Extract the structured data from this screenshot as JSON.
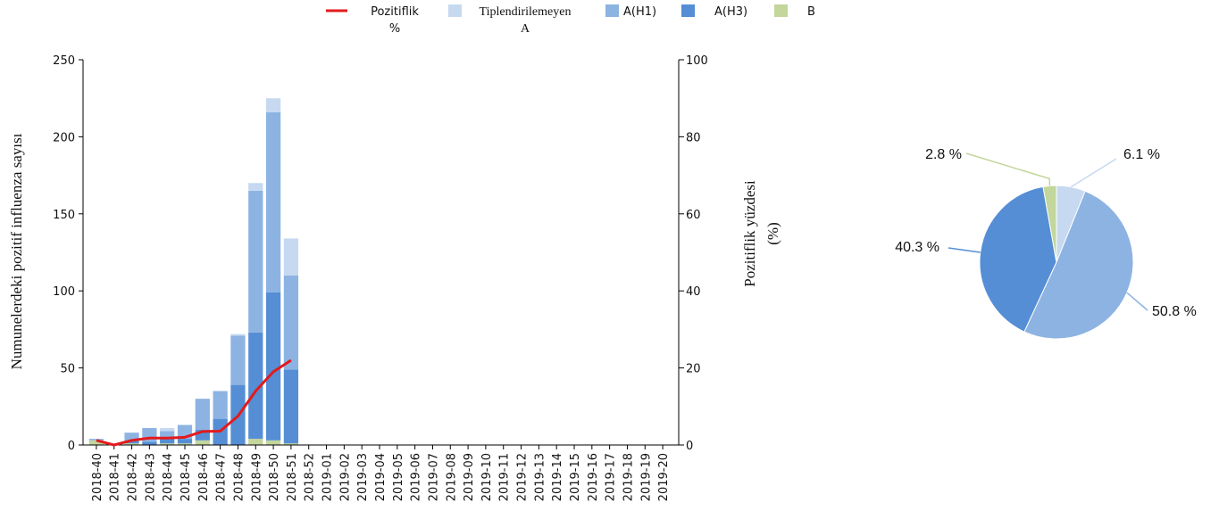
{
  "colors": {
    "untyped_A": "#c6d9f1",
    "A_H1": "#8db3e2",
    "A_H3": "#558ed5",
    "B": "#c3d69b",
    "positivity_line": "#e31a1c",
    "axis": "#000000"
  },
  "legend": [
    {
      "key": "positivity",
      "label_lines": [
        "Pozitiflik",
        "%"
      ],
      "kind": "line",
      "color": "#e31a1c"
    },
    {
      "key": "untyped_A",
      "label_lines": [
        "Tiplendirilemeyen",
        "A"
      ],
      "kind": "box",
      "color": "#c6d9f1"
    },
    {
      "key": "A_H1",
      "label_lines": [
        "A(H1)"
      ],
      "kind": "box",
      "color": "#8db3e2"
    },
    {
      "key": "A_H3",
      "label_lines": [
        "A(H3)"
      ],
      "kind": "box",
      "color": "#558ed5"
    },
    {
      "key": "B",
      "label_lines": [
        "B"
      ],
      "kind": "box",
      "color": "#c3d69b"
    }
  ],
  "chart_data": [
    {
      "type": "bar",
      "stacked": true,
      "ylabel": "Numunelerdeki pozitif influenza sayısı",
      "y2label_lines": [
        "Pozitiflik yüzdesi",
        "(%)"
      ],
      "ylim": [
        0,
        250
      ],
      "y2lim": [
        0,
        100
      ],
      "yticks": [
        0,
        50,
        100,
        150,
        200,
        250
      ],
      "y2ticks": [
        0,
        20,
        40,
        60,
        80,
        100
      ],
      "categories": [
        "2018-40",
        "2018-41",
        "2018-42",
        "2018-43",
        "2018-44",
        "2018-45",
        "2018-46",
        "2018-47",
        "2018-48",
        "2018-49",
        "2018-50",
        "2018-51",
        "2018-52",
        "2019-01",
        "2019-02",
        "2019-03",
        "2019-04",
        "2019-05",
        "2019-06",
        "2019-07",
        "2019-08",
        "2019-09",
        "2019-10",
        "2019-11",
        "2019-12",
        "2019-13",
        "2019-14",
        "2019-15",
        "2019-16",
        "2019-17",
        "2019-18",
        "2019-19",
        "2019-20"
      ],
      "series": [
        {
          "key": "B",
          "name": "B",
          "values": [
            3,
            0,
            1,
            0,
            1,
            1,
            3,
            0,
            0,
            4,
            3,
            1,
            0,
            0,
            0,
            0,
            0,
            0,
            0,
            0,
            0,
            0,
            0,
            0,
            0,
            0,
            0,
            0,
            0,
            0,
            0,
            0,
            0
          ]
        },
        {
          "key": "A_H3",
          "name": "A(H3)",
          "values": [
            0,
            0,
            2,
            2,
            3,
            3,
            7,
            17,
            39,
            69,
            96,
            48,
            0,
            0,
            0,
            0,
            0,
            0,
            0,
            0,
            0,
            0,
            0,
            0,
            0,
            0,
            0,
            0,
            0,
            0,
            0,
            0,
            0
          ]
        },
        {
          "key": "A_H1",
          "name": "A(H1)",
          "values": [
            1,
            0,
            5,
            9,
            5,
            9,
            20,
            18,
            32,
            92,
            117,
            61,
            0,
            0,
            0,
            0,
            0,
            0,
            0,
            0,
            0,
            0,
            0,
            0,
            0,
            0,
            0,
            0,
            0,
            0,
            0,
            0,
            0
          ]
        },
        {
          "key": "untyped_A",
          "name": "Tiplendirilemeyen A",
          "values": [
            0,
            0,
            0,
            0,
            2,
            0,
            0,
            0,
            1,
            5,
            9,
            24,
            0,
            0,
            0,
            0,
            0,
            0,
            0,
            0,
            0,
            0,
            0,
            0,
            0,
            0,
            0,
            0,
            0,
            0,
            0,
            0,
            0
          ]
        }
      ],
      "line_series": {
        "key": "positivity",
        "name": "Pozitiflik %",
        "values": [
          1.2,
          0,
          1.2,
          1.8,
          1.8,
          2,
          3.5,
          3.6,
          7.5,
          14,
          19,
          22
        ]
      }
    },
    {
      "type": "pie",
      "slices": [
        {
          "key": "untyped_A",
          "label": "6.1 %",
          "value": 6.1
        },
        {
          "key": "A_H1",
          "label": "50.8 %",
          "value": 50.8
        },
        {
          "key": "A_H3",
          "label": "40.3 %",
          "value": 40.3
        },
        {
          "key": "B",
          "label": "2.8 %",
          "value": 2.8
        }
      ]
    }
  ]
}
